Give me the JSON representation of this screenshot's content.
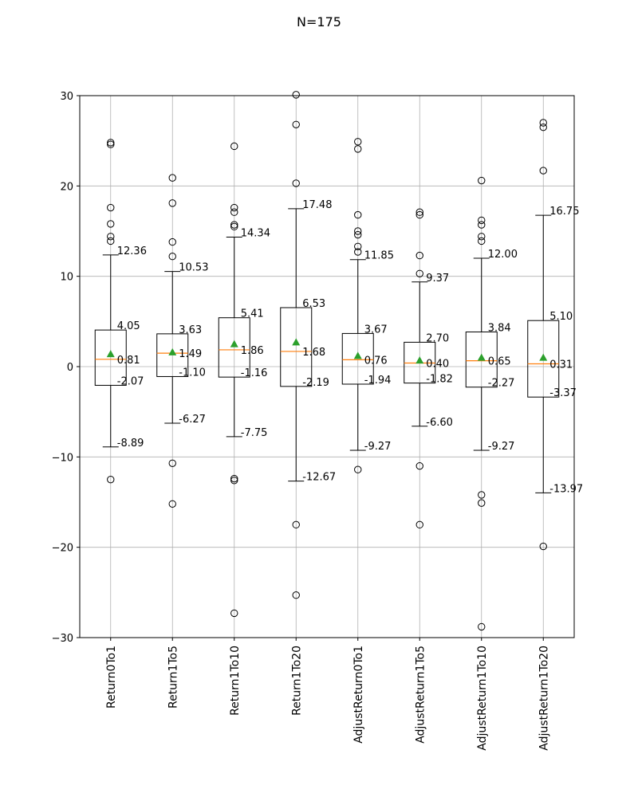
{
  "chart_data": {
    "type": "box",
    "title": "N=175",
    "xlabel": "",
    "ylabel": "",
    "ylim": [
      -30,
      30
    ],
    "yticks": [
      -30,
      -20,
      -10,
      0,
      10,
      20,
      30
    ],
    "ytick_labels": [
      "−30",
      "−20",
      "−10",
      "0",
      "10",
      "20",
      "30"
    ],
    "grid": true,
    "colors": {
      "median": "#ff7f0e",
      "mean": "#2ca02c",
      "box": "#000000",
      "grid": "#b0b0b0"
    },
    "categories": [
      "Return0To1",
      "Return1To5",
      "Return1To10",
      "Return1To20",
      "AdjustReturn0To1",
      "AdjustReturn1To5",
      "AdjustReturn1To10",
      "AdjustReturn1To20"
    ],
    "boxes": [
      {
        "name": "Return0To1",
        "whisker_low": -8.89,
        "q1": -2.07,
        "median": 0.81,
        "q3": 4.05,
        "whisker_high": 12.36,
        "mean": 1.4,
        "labels": {
          "whisker_low": "-8.89",
          "q1": "-2.07",
          "median": "0.81",
          "q3": "4.05",
          "whisker_high": "12.36"
        },
        "outliers": [
          24.8,
          24.6,
          17.6,
          15.8,
          14.4,
          13.9,
          -12.5
        ]
      },
      {
        "name": "Return1To5",
        "whisker_low": -6.27,
        "q1": -1.1,
        "median": 1.49,
        "q3": 3.63,
        "whisker_high": 10.53,
        "mean": 1.6,
        "labels": {
          "whisker_low": "-6.27",
          "q1": "-1.10",
          "median": "1.49",
          "q3": "3.63",
          "whisker_high": "10.53"
        },
        "outliers": [
          20.9,
          18.1,
          13.8,
          12.2,
          -10.7,
          -15.2
        ]
      },
      {
        "name": "Return1To10",
        "whisker_low": -7.75,
        "q1": -1.16,
        "median": 1.86,
        "q3": 5.41,
        "whisker_high": 14.34,
        "mean": 2.5,
        "labels": {
          "whisker_low": "-7.75",
          "q1": "-1.16",
          "median": "1.86",
          "q3": "5.41",
          "whisker_high": "14.34"
        },
        "outliers": [
          24.4,
          17.6,
          17.1,
          15.7,
          15.5,
          -12.4,
          -12.6,
          -27.3
        ]
      },
      {
        "name": "Return1To20",
        "whisker_low": -12.67,
        "q1": -2.19,
        "median": 1.68,
        "q3": 6.53,
        "whisker_high": 17.48,
        "mean": 2.7,
        "labels": {
          "whisker_low": "-12.67",
          "q1": "-2.19",
          "median": "1.68",
          "q3": "6.53",
          "whisker_high": "17.48"
        },
        "outliers": [
          30.1,
          26.8,
          20.3,
          -17.5,
          -25.3
        ]
      },
      {
        "name": "AdjustReturn0To1",
        "whisker_low": -9.27,
        "q1": -1.94,
        "median": 0.76,
        "q3": 3.67,
        "whisker_high": 11.85,
        "mean": 1.2,
        "labels": {
          "whisker_low": "-9.27",
          "q1": "-1.94",
          "median": "0.76",
          "q3": "3.67",
          "whisker_high": "11.85"
        },
        "outliers": [
          24.9,
          24.1,
          16.8,
          15.0,
          14.6,
          13.3,
          12.7,
          -11.4
        ]
      },
      {
        "name": "AdjustReturn1To5",
        "whisker_low": -6.6,
        "q1": -1.82,
        "median": 0.4,
        "q3": 2.7,
        "whisker_high": 9.37,
        "mean": 0.7,
        "labels": {
          "whisker_low": "-6.60",
          "q1": "-1.82",
          "median": "0.40",
          "q3": "2.70",
          "whisker_high": "9.37"
        },
        "outliers": [
          17.1,
          16.8,
          12.3,
          10.3,
          -11.0,
          -17.5
        ]
      },
      {
        "name": "AdjustReturn1To10",
        "whisker_low": -9.27,
        "q1": -2.27,
        "median": 0.65,
        "q3": 3.84,
        "whisker_high": 12.0,
        "mean": 1.0,
        "labels": {
          "whisker_low": "-9.27",
          "q1": "-2.27",
          "median": "0.65",
          "q3": "3.84",
          "whisker_high": "12.00"
        },
        "outliers": [
          20.6,
          16.2,
          15.7,
          14.4,
          13.9,
          -14.2,
          -15.1,
          -28.8
        ]
      },
      {
        "name": "AdjustReturn1To20",
        "whisker_low": -13.97,
        "q1": -3.37,
        "median": 0.31,
        "q3": 5.1,
        "whisker_high": 16.75,
        "mean": 1.0,
        "labels": {
          "whisker_low": "-13.97",
          "q1": "-3.37",
          "median": "0.31",
          "q3": "5.10",
          "whisker_high": "16.75"
        },
        "outliers": [
          27.0,
          26.5,
          21.7,
          -19.9
        ]
      }
    ]
  }
}
